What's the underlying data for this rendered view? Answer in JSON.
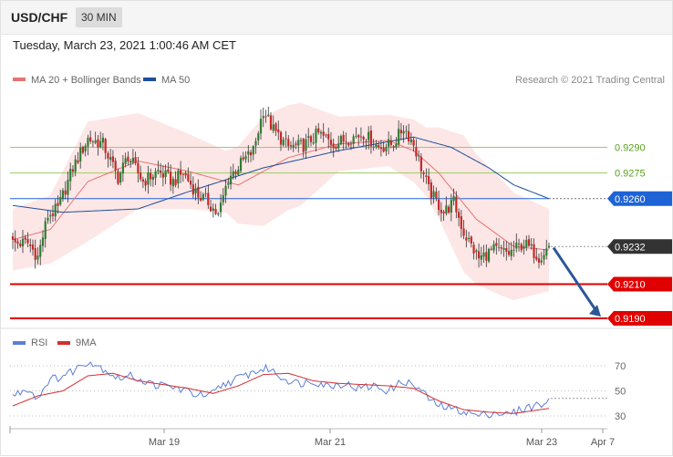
{
  "header": {
    "symbol": "USD/CHF",
    "timeframe": "30 MIN"
  },
  "datetime": "Tuesday, March 23, 2021 1:00:46 AM CET",
  "legend": {
    "ma20": "MA 20 + Bollinger Bands",
    "ma50": "MA 50",
    "rsi": "RSI",
    "rsi_ma": "9MA",
    "credit": "Research © 2021 Trading Central"
  },
  "colors": {
    "up": "#2e7d32",
    "down": "#c62828",
    "ma20": "#e57373",
    "band_fill": "#fde3e3",
    "ma50": "#1f4f99",
    "green_level": "#9ccc65",
    "blue_level": "#1e63d6",
    "red_level": "#e00000",
    "current": "#333333",
    "arrow": "#2b5797",
    "rsi": "#5b7fd6",
    "rsi_ma": "#d32f2f"
  },
  "chart_data": [
    {
      "type": "candlestick",
      "ylim": [
        0.9186,
        0.93
      ],
      "x_ticks": [
        "Mar 19",
        "Mar 21",
        "Mar 23",
        "Apr 7"
      ],
      "levels": [
        {
          "value": 0.929,
          "label": "0.9290",
          "kind": "resistance-minor"
        },
        {
          "value": 0.9275,
          "label": "0.9275",
          "kind": "resistance-minor"
        },
        {
          "value": 0.926,
          "label": "0.9260",
          "kind": "resistance"
        },
        {
          "value": 0.9232,
          "label": "0.9232",
          "kind": "current"
        },
        {
          "value": 0.921,
          "label": "0.9210",
          "kind": "support"
        },
        {
          "value": 0.919,
          "label": "0.9190",
          "kind": "support"
        }
      ],
      "close_anchors": [
        [
          0,
          0.9234
        ],
        [
          6,
          0.9234
        ],
        [
          10,
          0.9226
        ],
        [
          14,
          0.925
        ],
        [
          18,
          0.9254
        ],
        [
          24,
          0.9278
        ],
        [
          30,
          0.9295
        ],
        [
          36,
          0.9292
        ],
        [
          42,
          0.9272
        ],
        [
          46,
          0.9285
        ],
        [
          52,
          0.927
        ],
        [
          58,
          0.9276
        ],
        [
          64,
          0.927
        ],
        [
          68,
          0.9275
        ],
        [
          74,
          0.9262
        ],
        [
          78,
          0.9258
        ],
        [
          82,
          0.925
        ],
        [
          86,
          0.9272
        ],
        [
          92,
          0.9282
        ],
        [
          96,
          0.9288
        ],
        [
          100,
          0.9312
        ],
        [
          104,
          0.93
        ],
        [
          110,
          0.929
        ],
        [
          116,
          0.9291
        ],
        [
          122,
          0.9298
        ],
        [
          128,
          0.9292
        ],
        [
          134,
          0.9295
        ],
        [
          140,
          0.9298
        ],
        [
          146,
          0.929
        ],
        [
          152,
          0.9292
        ],
        [
          156,
          0.9302
        ],
        [
          160,
          0.9292
        ],
        [
          166,
          0.9265
        ],
        [
          172,
          0.9252
        ],
        [
          176,
          0.9258
        ],
        [
          180,
          0.924
        ],
        [
          186,
          0.9225
        ],
        [
          192,
          0.923
        ],
        [
          198,
          0.9228
        ],
        [
          204,
          0.9234
        ],
        [
          210,
          0.9226
        ],
        [
          214,
          0.9232
        ]
      ],
      "ma20_anchors": [
        [
          0,
          0.9236
        ],
        [
          15,
          0.9242
        ],
        [
          30,
          0.927
        ],
        [
          50,
          0.9282
        ],
        [
          70,
          0.9276
        ],
        [
          90,
          0.9268
        ],
        [
          110,
          0.9284
        ],
        [
          130,
          0.9292
        ],
        [
          150,
          0.9294
        ],
        [
          160,
          0.9288
        ],
        [
          170,
          0.9275
        ],
        [
          185,
          0.9248
        ],
        [
          200,
          0.9232
        ],
        [
          214,
          0.923
        ]
      ],
      "ma50_anchors": [
        [
          0,
          0.9256
        ],
        [
          20,
          0.9252
        ],
        [
          50,
          0.9254
        ],
        [
          70,
          0.9264
        ],
        [
          100,
          0.9278
        ],
        [
          130,
          0.9288
        ],
        [
          160,
          0.9296
        ],
        [
          175,
          0.929
        ],
        [
          190,
          0.9278
        ],
        [
          200,
          0.9268
        ],
        [
          214,
          0.926
        ]
      ],
      "bb_width_anchors": [
        [
          0,
          0.0018
        ],
        [
          15,
          0.002
        ],
        [
          30,
          0.0035
        ],
        [
          50,
          0.0028
        ],
        [
          70,
          0.0022
        ],
        [
          85,
          0.0018
        ],
        [
          100,
          0.0032
        ],
        [
          115,
          0.003
        ],
        [
          130,
          0.0016
        ],
        [
          150,
          0.0015
        ],
        [
          165,
          0.002
        ],
        [
          180,
          0.004
        ],
        [
          195,
          0.0034
        ],
        [
          214,
          0.0024
        ]
      ]
    },
    {
      "type": "line",
      "name": "RSI",
      "y_ticks": [
        70,
        50,
        30
      ],
      "ylim": [
        25,
        80
      ],
      "rsi_anchors": [
        [
          0,
          46
        ],
        [
          6,
          52
        ],
        [
          10,
          44
        ],
        [
          14,
          58
        ],
        [
          20,
          62
        ],
        [
          24,
          66
        ],
        [
          30,
          74
        ],
        [
          36,
          68
        ],
        [
          42,
          60
        ],
        [
          48,
          62
        ],
        [
          54,
          56
        ],
        [
          60,
          54
        ],
        [
          66,
          52
        ],
        [
          72,
          48
        ],
        [
          78,
          45
        ],
        [
          84,
          55
        ],
        [
          90,
          60
        ],
        [
          96,
          65
        ],
        [
          102,
          68
        ],
        [
          108,
          60
        ],
        [
          114,
          56
        ],
        [
          120,
          58
        ],
        [
          126,
          54
        ],
        [
          132,
          56
        ],
        [
          138,
          52
        ],
        [
          144,
          54
        ],
        [
          150,
          50
        ],
        [
          156,
          58
        ],
        [
          162,
          52
        ],
        [
          168,
          40
        ],
        [
          174,
          36
        ],
        [
          180,
          34
        ],
        [
          186,
          30
        ],
        [
          192,
          33
        ],
        [
          198,
          31
        ],
        [
          204,
          36
        ],
        [
          208,
          38
        ],
        [
          214,
          41
        ]
      ],
      "rsi_ma_anchors": [
        [
          0,
          38
        ],
        [
          10,
          46
        ],
        [
          20,
          50
        ],
        [
          30,
          62
        ],
        [
          40,
          64
        ],
        [
          50,
          58
        ],
        [
          60,
          55
        ],
        [
          70,
          52
        ],
        [
          80,
          48
        ],
        [
          90,
          54
        ],
        [
          100,
          63
        ],
        [
          110,
          64
        ],
        [
          120,
          58
        ],
        [
          130,
          56
        ],
        [
          140,
          55
        ],
        [
          150,
          54
        ],
        [
          160,
          52
        ],
        [
          170,
          42
        ],
        [
          180,
          35
        ],
        [
          190,
          33
        ],
        [
          200,
          32
        ],
        [
          214,
          36
        ]
      ]
    }
  ]
}
